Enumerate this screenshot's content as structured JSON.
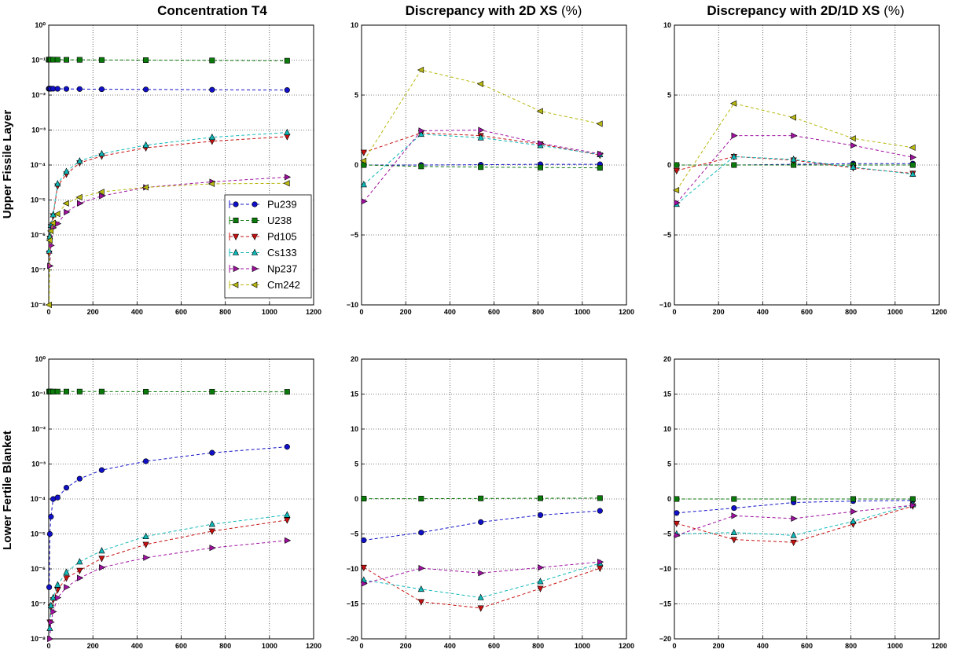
{
  "column_titles": [
    {
      "bold": "Concentration T4",
      "suffix": ""
    },
    {
      "bold": "Discrepancy with 2D XS",
      "suffix": "(%)"
    },
    {
      "bold": "Discrepancy with 2D/1D XS",
      "suffix": "(%)"
    }
  ],
  "row_titles": [
    "Upper Fissile Layer",
    "Lower Fertile Blanket"
  ],
  "legend": [
    "Pu239",
    "U238",
    "Pd105",
    "Cs133",
    "Np237",
    "Cm242"
  ],
  "series_style": {
    "Pu239": {
      "color": "#1010c8",
      "marker": "circle"
    },
    "U238": {
      "color": "#0a7a0a",
      "marker": "square"
    },
    "Pd105": {
      "color": "#c81010",
      "marker": "tri-down"
    },
    "Cs133": {
      "color": "#10b8b8",
      "marker": "tri-up"
    },
    "Np237": {
      "color": "#a010a0",
      "marker": "tri-right"
    },
    "Cm242": {
      "color": "#b8b810",
      "marker": "tri-left"
    }
  },
  "chart_data": [
    {
      "type": "line",
      "panel": "upper-concentration",
      "yscale": "log",
      "xlim": [
        0,
        1200
      ],
      "ylim": [
        1e-08,
        1
      ],
      "xticks": [
        "0",
        "200",
        "400",
        "600",
        "800",
        "1000",
        "1200"
      ],
      "yticks": [
        "10⁻⁸",
        "10⁻⁷",
        "10⁻⁶",
        "10⁻⁵",
        "10⁻⁴",
        "10⁻³",
        "10⁻²",
        "10⁻¹",
        "10⁰"
      ],
      "legend_position": "lower-right",
      "series": [
        {
          "name": "Pu239",
          "x": [
            0,
            2,
            5,
            10,
            20,
            40,
            80,
            140,
            240,
            440,
            740,
            1080
          ],
          "y": [
            0.0152,
            0.0152,
            0.0152,
            0.0152,
            0.0152,
            0.0151,
            0.015,
            0.0149,
            0.0147,
            0.0145,
            0.0142,
            0.0139
          ]
        },
        {
          "name": "U238",
          "x": [
            0,
            2,
            5,
            10,
            20,
            40,
            80,
            140,
            240,
            440,
            740,
            1080
          ],
          "y": [
            0.103,
            0.103,
            0.103,
            0.103,
            0.103,
            0.103,
            0.102,
            0.102,
            0.101,
            0.1,
            0.098,
            0.096
          ]
        },
        {
          "name": "Pd105",
          "x": [
            2,
            5,
            10,
            20,
            40,
            80,
            140,
            240,
            440,
            740,
            1080
          ],
          "y": [
            3e-07,
            8e-07,
            1.7e-06,
            3.5e-06,
            2.5e-05,
            5.5e-05,
            0.000115,
            0.00018,
            0.00031,
            0.00048,
            0.00065
          ]
        },
        {
          "name": "Cs133",
          "x": [
            2,
            5,
            10,
            20,
            40,
            80,
            140,
            240,
            440,
            740,
            1080
          ],
          "y": [
            3.5e-07,
            9e-07,
            1.9e-06,
            3.8e-06,
            2.9e-05,
            6.5e-05,
            0.00013,
            0.00021,
            0.00037,
            0.00062,
            0.00085
          ]
        },
        {
          "name": "Np237",
          "x": [
            5,
            10,
            20,
            40,
            80,
            140,
            240,
            440,
            740,
            1080
          ],
          "y": [
            1.3e-07,
            5e-07,
            1.6e-06,
            2.1e-06,
            4.5e-06,
            8e-06,
            1.3e-05,
            2.3e-05,
            3.3e-05,
            4.5e-05
          ]
        },
        {
          "name": "Cm242",
          "x": [
            2,
            5,
            10,
            20,
            40,
            80,
            140,
            240,
            440,
            740,
            1080
          ],
          "y": [
            1e-08,
            7e-07,
            1.3e-06,
            2.2e-06,
            4e-06,
            8e-06,
            1.2e-05,
            1.7e-05,
            2.3e-05,
            2.9e-05,
            3e-05
          ]
        }
      ]
    },
    {
      "type": "line",
      "panel": "upper-2d",
      "yscale": "linear",
      "xlim": [
        0,
        1200
      ],
      "ylim": [
        -10,
        10
      ],
      "xticks": [
        "0",
        "200",
        "400",
        "600",
        "800",
        "1000",
        "1200"
      ],
      "yticks": [
        "−10",
        "−5",
        "0",
        "5",
        "10"
      ],
      "ytick_values": [
        -10,
        -5,
        0,
        5,
        10
      ],
      "series": [
        {
          "name": "Pu239",
          "x": [
            10,
            270,
            540,
            810,
            1080
          ],
          "y": [
            0,
            0,
            0.02,
            0.05,
            0.05
          ]
        },
        {
          "name": "U238",
          "x": [
            10,
            270,
            540,
            810,
            1080
          ],
          "y": [
            0,
            -0.1,
            -0.15,
            -0.18,
            -0.2
          ]
        },
        {
          "name": "Pd105",
          "x": [
            10,
            270,
            540,
            810,
            1080
          ],
          "y": [
            0.9,
            2.3,
            2.1,
            1.5,
            0.7
          ]
        },
        {
          "name": "Cs133",
          "x": [
            10,
            270,
            540,
            810,
            1080
          ],
          "y": [
            -1.4,
            2.2,
            1.95,
            1.4,
            0.75
          ]
        },
        {
          "name": "Np237",
          "x": [
            10,
            270,
            540,
            810,
            1080
          ],
          "y": [
            -2.6,
            2.45,
            2.5,
            1.55,
            0.8
          ]
        },
        {
          "name": "Cm242",
          "x": [
            10,
            270,
            540,
            810,
            1080
          ],
          "y": [
            0.3,
            6.8,
            5.8,
            3.85,
            2.95
          ]
        }
      ]
    },
    {
      "type": "line",
      "panel": "upper-2d1d",
      "yscale": "linear",
      "xlim": [
        0,
        1200
      ],
      "ylim": [
        -10,
        10
      ],
      "xticks": [
        "0",
        "200",
        "400",
        "600",
        "800",
        "1000",
        "1200"
      ],
      "yticks": [
        "−10",
        "−5",
        "0",
        "5",
        "10"
      ],
      "ytick_values": [
        -10,
        -5,
        0,
        5,
        10
      ],
      "series": [
        {
          "name": "Pu239",
          "x": [
            10,
            270,
            540,
            810,
            1080
          ],
          "y": [
            0,
            0,
            0.05,
            0.1,
            0.1
          ]
        },
        {
          "name": "U238",
          "x": [
            10,
            270,
            540,
            810,
            1080
          ],
          "y": [
            0,
            0,
            0,
            0,
            0
          ]
        },
        {
          "name": "Pd105",
          "x": [
            10,
            270,
            540,
            810,
            1080
          ],
          "y": [
            -0.4,
            0.6,
            0.35,
            -0.2,
            -0.6
          ]
        },
        {
          "name": "Cs133",
          "x": [
            10,
            270,
            540,
            810,
            1080
          ],
          "y": [
            -2.8,
            0.6,
            0.4,
            -0.15,
            -0.65
          ]
        },
        {
          "name": "Np237",
          "x": [
            10,
            270,
            540,
            810,
            1080
          ],
          "y": [
            -2.7,
            2.1,
            2.1,
            1.4,
            0.55
          ]
        },
        {
          "name": "Cm242",
          "x": [
            10,
            270,
            540,
            810,
            1080
          ],
          "y": [
            -1.8,
            4.4,
            3.4,
            1.9,
            1.25
          ]
        }
      ]
    },
    {
      "type": "line",
      "panel": "lower-concentration",
      "yscale": "log",
      "xlim": [
        0,
        1200
      ],
      "ylim": [
        1e-08,
        1
      ],
      "xticks": [
        "0",
        "200",
        "400",
        "600",
        "800",
        "1000",
        "1200"
      ],
      "yticks": [
        "10⁻⁸",
        "10⁻⁷",
        "10⁻⁶",
        "10⁻⁵",
        "10⁻⁴",
        "10⁻³",
        "10⁻²",
        "10⁻¹",
        "10⁰"
      ],
      "series": [
        {
          "name": "Pu239",
          "x": [
            2,
            5,
            10,
            20,
            40,
            80,
            140,
            240,
            440,
            740,
            1080
          ],
          "y": [
            3e-07,
            1e-05,
            3.1e-05,
            0.0001,
            0.00011,
            0.00021,
            0.00038,
            0.00067,
            0.0012,
            0.0021,
            0.0031
          ]
        },
        {
          "name": "U238",
          "x": [
            2,
            5,
            10,
            20,
            40,
            80,
            140,
            240,
            440,
            740,
            1080
          ],
          "y": [
            0.118,
            0.118,
            0.118,
            0.118,
            0.118,
            0.118,
            0.118,
            0.118,
            0.117,
            0.117,
            0.116
          ]
        },
        {
          "name": "Pd105",
          "x": [
            5,
            10,
            20,
            40,
            80,
            140,
            240,
            440,
            740,
            1080
          ],
          "y": [
            3e-08,
            8e-08,
            1.3e-07,
            2.5e-07,
            5.5e-07,
            9e-07,
            2e-06,
            5e-06,
            1.2e-05,
            2.5e-05
          ]
        },
        {
          "name": "Cs133",
          "x": [
            5,
            10,
            20,
            40,
            80,
            140,
            240,
            440,
            740,
            1080
          ],
          "y": [
            2e-08,
            9e-08,
            1.5e-07,
            3.5e-07,
            8e-07,
            1.6e-06,
            3.3e-06,
            8.5e-06,
            1.9e-05,
            3.5e-05
          ]
        },
        {
          "name": "Np237",
          "x": [
            5,
            10,
            20,
            40,
            80,
            140,
            240,
            440,
            740,
            1080
          ],
          "y": [
            1e-08,
            3e-08,
            6e-08,
            1.5e-07,
            3e-07,
            5.5e-07,
            1.1e-06,
            2.1e-06,
            4e-06,
            6.5e-06
          ]
        }
      ]
    },
    {
      "type": "line",
      "panel": "lower-2d",
      "yscale": "linear",
      "xlim": [
        0,
        1200
      ],
      "ylim": [
        -20,
        20
      ],
      "xticks": [
        "0",
        "200",
        "400",
        "600",
        "800",
        "1000",
        "1200"
      ],
      "yticks": [
        "−20",
        "−15",
        "−10",
        "−5",
        "0",
        "5",
        "10",
        "15",
        "20"
      ],
      "ytick_values": [
        -20,
        -15,
        -10,
        -5,
        0,
        5,
        10,
        15,
        20
      ],
      "series": [
        {
          "name": "Pu239",
          "x": [
            10,
            270,
            540,
            810,
            1080
          ],
          "y": [
            -5.9,
            -4.8,
            -3.3,
            -2.3,
            -1.7
          ]
        },
        {
          "name": "U238",
          "x": [
            10,
            270,
            540,
            810,
            1080
          ],
          "y": [
            0.05,
            0.05,
            0.08,
            0.1,
            0.12
          ]
        },
        {
          "name": "Pd105",
          "x": [
            10,
            270,
            540,
            810,
            1080
          ],
          "y": [
            -9.8,
            -14.7,
            -15.6,
            -12.8,
            -9.9
          ]
        },
        {
          "name": "Cs133",
          "x": [
            10,
            270,
            540,
            810,
            1080
          ],
          "y": [
            -11.6,
            -12.9,
            -14.1,
            -11.8,
            -9.2
          ]
        },
        {
          "name": "Np237",
          "x": [
            10,
            270,
            540,
            810,
            1080
          ],
          "y": [
            -12.1,
            -9.9,
            -10.6,
            -9.8,
            -9.0
          ]
        }
      ]
    },
    {
      "type": "line",
      "panel": "lower-2d1d",
      "yscale": "linear",
      "xlim": [
        0,
        1200
      ],
      "ylim": [
        -20,
        20
      ],
      "xticks": [
        "0",
        "200",
        "400",
        "600",
        "800",
        "1000",
        "1200"
      ],
      "yticks": [
        "−20",
        "−15",
        "−10",
        "−5",
        "0",
        "5",
        "10",
        "15",
        "20"
      ],
      "ytick_values": [
        -20,
        -15,
        -10,
        -5,
        0,
        5,
        10,
        15,
        20
      ],
      "series": [
        {
          "name": "Pu239",
          "x": [
            10,
            270,
            540,
            810,
            1080
          ],
          "y": [
            -2.0,
            -1.3,
            -0.5,
            -0.3,
            -0.2
          ]
        },
        {
          "name": "U238",
          "x": [
            10,
            270,
            540,
            810,
            1080
          ],
          "y": [
            0,
            0,
            0,
            0,
            0
          ]
        },
        {
          "name": "Pd105",
          "x": [
            10,
            270,
            540,
            810,
            1080
          ],
          "y": [
            -3.5,
            -5.8,
            -6.2,
            -3.6,
            -1.0
          ]
        },
        {
          "name": "Cs133",
          "x": [
            10,
            270,
            540,
            810,
            1080
          ],
          "y": [
            -5.0,
            -4.8,
            -5.2,
            -3.2,
            -0.8
          ]
        },
        {
          "name": "Np237",
          "x": [
            10,
            270,
            540,
            810,
            1080
          ],
          "y": [
            -5.2,
            -2.4,
            -2.8,
            -1.8,
            -0.9
          ]
        }
      ]
    }
  ]
}
